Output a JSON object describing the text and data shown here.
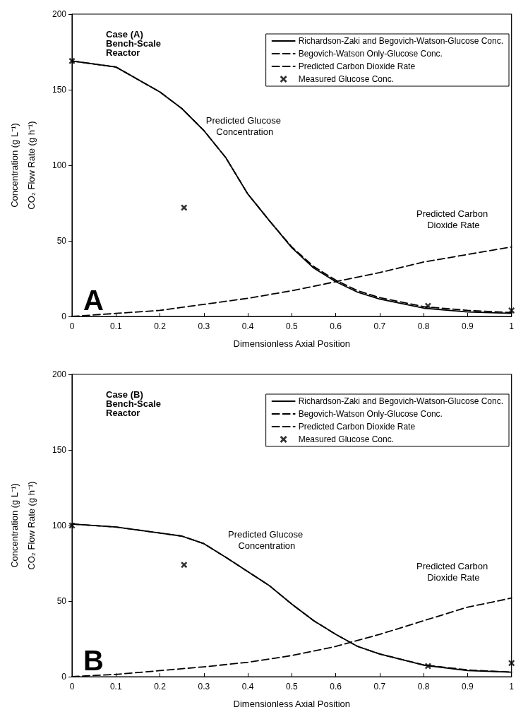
{
  "chart_data": [
    {
      "type": "line",
      "xlabel": "Dimensionless Axial Position",
      "ylabel": "Concentration (g L⁻¹)\nCO₂ Flow Rate (g h⁻¹)",
      "xlim": [
        0,
        1
      ],
      "xticks": [
        0,
        0.1,
        0.2,
        0.3,
        0.4,
        0.5,
        0.6,
        0.7,
        0.8,
        0.9,
        1
      ],
      "ylim": [
        0,
        200
      ],
      "yticks": [
        0,
        50,
        100,
        150,
        200
      ],
      "grid": false,
      "legend": "top right",
      "marker": "none",
      "annotations": [
        "Case (A) Bench-Scale Reactor",
        "A",
        "Predicted Glucose Concentration",
        "Predicted Carbon Dioxide Rate"
      ],
      "series": [
        {
          "name": "Richardson-Zaki and Begovich-Watson-Glucose Conc.",
          "color": "#000000",
          "line_style": "solid",
          "x": [
            0,
            0.1,
            0.2,
            0.25,
            0.3,
            0.35,
            0.4,
            0.45,
            0.5,
            0.55,
            0.6,
            0.65,
            0.7,
            0.8,
            0.9,
            1
          ],
          "values": [
            169,
            165,
            148.5,
            137.5,
            123,
            105,
            81,
            63,
            45.5,
            32,
            23,
            16,
            11.5,
            5.5,
            3,
            2
          ]
        },
        {
          "name": "Begovich-Watson Only-Glucose Conc.",
          "color": "#000000",
          "line_style": "dashed",
          "x": [
            0,
            0.1,
            0.2,
            0.25,
            0.3,
            0.35,
            0.4,
            0.45,
            0.5,
            0.55,
            0.6,
            0.65,
            0.7,
            0.8,
            0.9,
            1
          ],
          "values": [
            169,
            165,
            148.5,
            137.5,
            123,
            105,
            81,
            63,
            46,
            33,
            24,
            17,
            12.5,
            6.5,
            4,
            2.5
          ]
        },
        {
          "name": "Predicted Carbon Dioxide Rate",
          "color": "#000000",
          "line_style": "dashed",
          "x": [
            0,
            0.1,
            0.2,
            0.3,
            0.4,
            0.5,
            0.6,
            0.7,
            0.8,
            0.9,
            1
          ],
          "values": [
            0,
            2,
            4,
            8,
            12,
            17,
            23,
            29,
            36,
            41,
            46
          ]
        },
        {
          "name": "Measured Glucose Conc.",
          "type": "scatter",
          "marker": "cross",
          "color": "#000000",
          "x": [
            0,
            0.255,
            0.81,
            1
          ],
          "values": [
            169,
            72,
            7,
            4
          ]
        }
      ]
    },
    {
      "type": "line",
      "xlabel": "Dimensionless Axial Position",
      "ylabel": "Concentration (g L⁻¹)\nCO₂ Flow Rate (g h⁻¹)",
      "xlim": [
        0,
        1
      ],
      "xticks": [
        0,
        0.1,
        0.2,
        0.3,
        0.4,
        0.5,
        0.6,
        0.7,
        0.8,
        0.9,
        1
      ],
      "ylim": [
        0,
        200
      ],
      "yticks": [
        0,
        50,
        100,
        150,
        200
      ],
      "grid": false,
      "legend": "top right",
      "marker": "none",
      "annotations": [
        "Case (B) Bench-Scale Reactor",
        "B",
        "Predicted Glucose Concentration",
        "Predicted Carbon Dioxide Rate"
      ],
      "series": [
        {
          "name": "Richardson-Zaki and Begovich-Watson-Glucose Conc.",
          "color": "#000000",
          "line_style": "solid",
          "x": [
            0,
            0.1,
            0.2,
            0.25,
            0.3,
            0.35,
            0.4,
            0.45,
            0.5,
            0.55,
            0.6,
            0.65,
            0.7,
            0.8,
            0.9,
            1
          ],
          "values": [
            101,
            99,
            95,
            93,
            88,
            79,
            69.5,
            60,
            48,
            37,
            28,
            20,
            15,
            7.6,
            4,
            3
          ]
        },
        {
          "name": "Begovich-Watson Only-Glucose Conc.",
          "color": "#000000",
          "line_style": "dashed",
          "x": [
            0,
            0.1,
            0.2,
            0.25,
            0.3,
            0.35,
            0.4,
            0.45,
            0.5,
            0.55,
            0.6,
            0.65,
            0.7,
            0.8,
            0.9,
            1
          ],
          "values": [
            101,
            99,
            95,
            93,
            88,
            79,
            69.5,
            60,
            48,
            37,
            28,
            20,
            15,
            7.8,
            4.5,
            3
          ]
        },
        {
          "name": "Predicted Carbon Dioxide Rate",
          "color": "#000000",
          "line_style": "dashed",
          "x": [
            0,
            0.1,
            0.2,
            0.3,
            0.4,
            0.5,
            0.6,
            0.7,
            0.8,
            0.9,
            1
          ],
          "values": [
            0,
            1.5,
            4,
            6.5,
            9.5,
            14,
            20,
            28,
            37,
            46,
            52
          ]
        },
        {
          "name": "Measured Glucose Conc.",
          "type": "scatter",
          "marker": "cross",
          "color": "#000000",
          "x": [
            0,
            0.255,
            0.81,
            1
          ],
          "values": [
            100,
            74,
            7,
            9
          ]
        }
      ]
    }
  ]
}
